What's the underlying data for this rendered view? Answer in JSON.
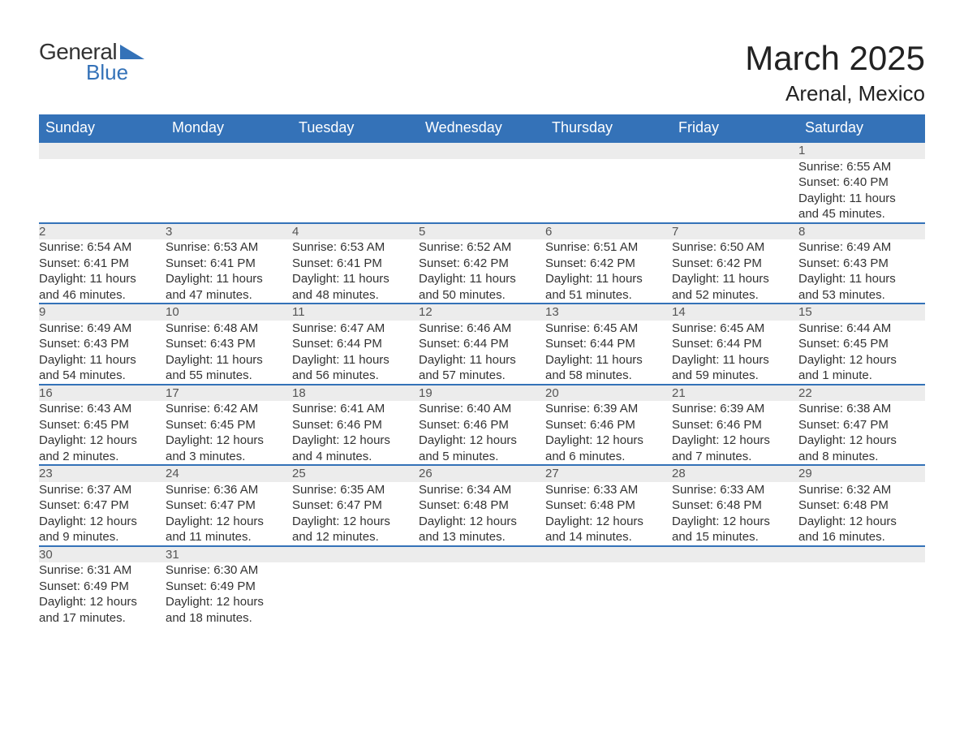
{
  "brand": {
    "line1": "General",
    "line2": "Blue",
    "brand_color": "#3472b8"
  },
  "title": {
    "month": "March 2025",
    "location": "Arenal, Mexico"
  },
  "colors": {
    "header_bg": "#3472b8",
    "header_text": "#ffffff",
    "daynum_bg": "#ececec",
    "row_divider": "#3472b8",
    "body_text": "#333333",
    "background": "#ffffff"
  },
  "typography": {
    "title_fontsize": 42,
    "location_fontsize": 26,
    "dayheader_fontsize": 18,
    "cell_fontsize": 15,
    "font_family": "Arial, Helvetica, sans-serif"
  },
  "calendar": {
    "type": "table",
    "columns": [
      "Sunday",
      "Monday",
      "Tuesday",
      "Wednesday",
      "Thursday",
      "Friday",
      "Saturday"
    ],
    "weeks": [
      [
        null,
        null,
        null,
        null,
        null,
        null,
        {
          "day": "1",
          "sunrise": "Sunrise: 6:55 AM",
          "sunset": "Sunset: 6:40 PM",
          "daylight1": "Daylight: 11 hours",
          "daylight2": "and 45 minutes."
        }
      ],
      [
        {
          "day": "2",
          "sunrise": "Sunrise: 6:54 AM",
          "sunset": "Sunset: 6:41 PM",
          "daylight1": "Daylight: 11 hours",
          "daylight2": "and 46 minutes."
        },
        {
          "day": "3",
          "sunrise": "Sunrise: 6:53 AM",
          "sunset": "Sunset: 6:41 PM",
          "daylight1": "Daylight: 11 hours",
          "daylight2": "and 47 minutes."
        },
        {
          "day": "4",
          "sunrise": "Sunrise: 6:53 AM",
          "sunset": "Sunset: 6:41 PM",
          "daylight1": "Daylight: 11 hours",
          "daylight2": "and 48 minutes."
        },
        {
          "day": "5",
          "sunrise": "Sunrise: 6:52 AM",
          "sunset": "Sunset: 6:42 PM",
          "daylight1": "Daylight: 11 hours",
          "daylight2": "and 50 minutes."
        },
        {
          "day": "6",
          "sunrise": "Sunrise: 6:51 AM",
          "sunset": "Sunset: 6:42 PM",
          "daylight1": "Daylight: 11 hours",
          "daylight2": "and 51 minutes."
        },
        {
          "day": "7",
          "sunrise": "Sunrise: 6:50 AM",
          "sunset": "Sunset: 6:42 PM",
          "daylight1": "Daylight: 11 hours",
          "daylight2": "and 52 minutes."
        },
        {
          "day": "8",
          "sunrise": "Sunrise: 6:49 AM",
          "sunset": "Sunset: 6:43 PM",
          "daylight1": "Daylight: 11 hours",
          "daylight2": "and 53 minutes."
        }
      ],
      [
        {
          "day": "9",
          "sunrise": "Sunrise: 6:49 AM",
          "sunset": "Sunset: 6:43 PM",
          "daylight1": "Daylight: 11 hours",
          "daylight2": "and 54 minutes."
        },
        {
          "day": "10",
          "sunrise": "Sunrise: 6:48 AM",
          "sunset": "Sunset: 6:43 PM",
          "daylight1": "Daylight: 11 hours",
          "daylight2": "and 55 minutes."
        },
        {
          "day": "11",
          "sunrise": "Sunrise: 6:47 AM",
          "sunset": "Sunset: 6:44 PM",
          "daylight1": "Daylight: 11 hours",
          "daylight2": "and 56 minutes."
        },
        {
          "day": "12",
          "sunrise": "Sunrise: 6:46 AM",
          "sunset": "Sunset: 6:44 PM",
          "daylight1": "Daylight: 11 hours",
          "daylight2": "and 57 minutes."
        },
        {
          "day": "13",
          "sunrise": "Sunrise: 6:45 AM",
          "sunset": "Sunset: 6:44 PM",
          "daylight1": "Daylight: 11 hours",
          "daylight2": "and 58 minutes."
        },
        {
          "day": "14",
          "sunrise": "Sunrise: 6:45 AM",
          "sunset": "Sunset: 6:44 PM",
          "daylight1": "Daylight: 11 hours",
          "daylight2": "and 59 minutes."
        },
        {
          "day": "15",
          "sunrise": "Sunrise: 6:44 AM",
          "sunset": "Sunset: 6:45 PM",
          "daylight1": "Daylight: 12 hours",
          "daylight2": "and 1 minute."
        }
      ],
      [
        {
          "day": "16",
          "sunrise": "Sunrise: 6:43 AM",
          "sunset": "Sunset: 6:45 PM",
          "daylight1": "Daylight: 12 hours",
          "daylight2": "and 2 minutes."
        },
        {
          "day": "17",
          "sunrise": "Sunrise: 6:42 AM",
          "sunset": "Sunset: 6:45 PM",
          "daylight1": "Daylight: 12 hours",
          "daylight2": "and 3 minutes."
        },
        {
          "day": "18",
          "sunrise": "Sunrise: 6:41 AM",
          "sunset": "Sunset: 6:46 PM",
          "daylight1": "Daylight: 12 hours",
          "daylight2": "and 4 minutes."
        },
        {
          "day": "19",
          "sunrise": "Sunrise: 6:40 AM",
          "sunset": "Sunset: 6:46 PM",
          "daylight1": "Daylight: 12 hours",
          "daylight2": "and 5 minutes."
        },
        {
          "day": "20",
          "sunrise": "Sunrise: 6:39 AM",
          "sunset": "Sunset: 6:46 PM",
          "daylight1": "Daylight: 12 hours",
          "daylight2": "and 6 minutes."
        },
        {
          "day": "21",
          "sunrise": "Sunrise: 6:39 AM",
          "sunset": "Sunset: 6:46 PM",
          "daylight1": "Daylight: 12 hours",
          "daylight2": "and 7 minutes."
        },
        {
          "day": "22",
          "sunrise": "Sunrise: 6:38 AM",
          "sunset": "Sunset: 6:47 PM",
          "daylight1": "Daylight: 12 hours",
          "daylight2": "and 8 minutes."
        }
      ],
      [
        {
          "day": "23",
          "sunrise": "Sunrise: 6:37 AM",
          "sunset": "Sunset: 6:47 PM",
          "daylight1": "Daylight: 12 hours",
          "daylight2": "and 9 minutes."
        },
        {
          "day": "24",
          "sunrise": "Sunrise: 6:36 AM",
          "sunset": "Sunset: 6:47 PM",
          "daylight1": "Daylight: 12 hours",
          "daylight2": "and 11 minutes."
        },
        {
          "day": "25",
          "sunrise": "Sunrise: 6:35 AM",
          "sunset": "Sunset: 6:47 PM",
          "daylight1": "Daylight: 12 hours",
          "daylight2": "and 12 minutes."
        },
        {
          "day": "26",
          "sunrise": "Sunrise: 6:34 AM",
          "sunset": "Sunset: 6:48 PM",
          "daylight1": "Daylight: 12 hours",
          "daylight2": "and 13 minutes."
        },
        {
          "day": "27",
          "sunrise": "Sunrise: 6:33 AM",
          "sunset": "Sunset: 6:48 PM",
          "daylight1": "Daylight: 12 hours",
          "daylight2": "and 14 minutes."
        },
        {
          "day": "28",
          "sunrise": "Sunrise: 6:33 AM",
          "sunset": "Sunset: 6:48 PM",
          "daylight1": "Daylight: 12 hours",
          "daylight2": "and 15 minutes."
        },
        {
          "day": "29",
          "sunrise": "Sunrise: 6:32 AM",
          "sunset": "Sunset: 6:48 PM",
          "daylight1": "Daylight: 12 hours",
          "daylight2": "and 16 minutes."
        }
      ],
      [
        {
          "day": "30",
          "sunrise": "Sunrise: 6:31 AM",
          "sunset": "Sunset: 6:49 PM",
          "daylight1": "Daylight: 12 hours",
          "daylight2": "and 17 minutes."
        },
        {
          "day": "31",
          "sunrise": "Sunrise: 6:30 AM",
          "sunset": "Sunset: 6:49 PM",
          "daylight1": "Daylight: 12 hours",
          "daylight2": "and 18 minutes."
        },
        null,
        null,
        null,
        null,
        null
      ]
    ]
  }
}
